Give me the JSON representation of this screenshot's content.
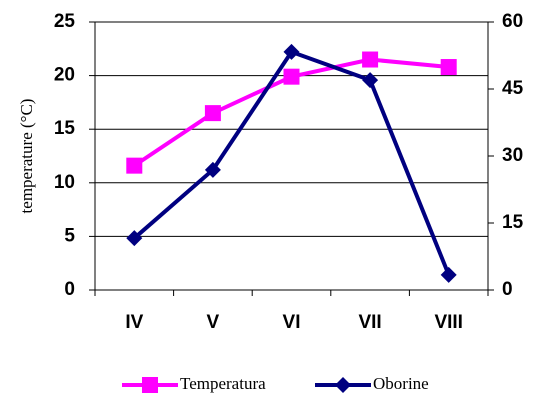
{
  "chart_data": {
    "type": "line",
    "y_label": "temperature (°C)",
    "categories": [
      "IV",
      "V",
      "VI",
      "VII",
      "VIII"
    ],
    "series": [
      {
        "name": "Temperatura",
        "color": "#ff00ff",
        "marker": "square",
        "values": [
          11.6,
          16.5,
          19.9,
          21.5,
          20.8
        ]
      },
      {
        "name": "Oborine",
        "color": "#000080",
        "marker": "diamond",
        "axis": "y2",
        "values": [
          11.6,
          26.9,
          53.3,
          47,
          3.4
        ]
      }
    ],
    "ylim": [
      0,
      25
    ],
    "yticks": [
      0,
      5,
      10,
      15,
      20,
      25
    ],
    "y2lim": [
      0,
      60
    ],
    "y2ticks": [
      0,
      15,
      30,
      45,
      60
    ],
    "grid": true,
    "legend": "bottom"
  }
}
